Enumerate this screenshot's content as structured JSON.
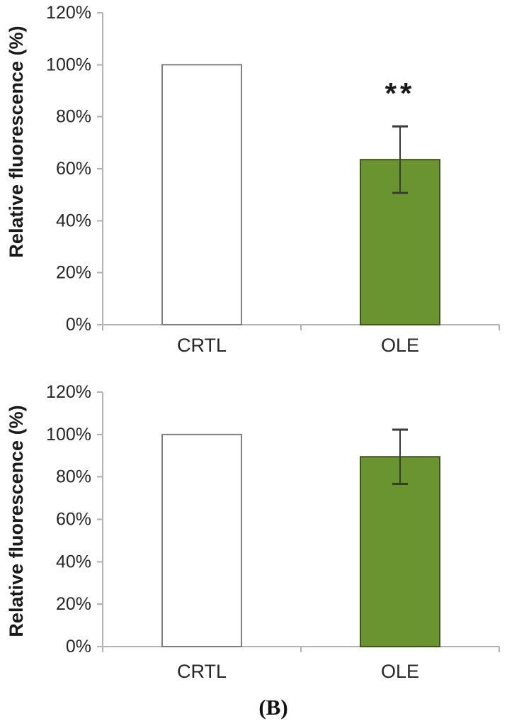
{
  "figure": {
    "caption": "(B)"
  },
  "colors": {
    "background": "#ffffff",
    "axis_line": "#b2b2b2",
    "tick_text": "#262626",
    "error_bar": "#3a3a3a",
    "annotation_text": "#1a1a1a",
    "green_fill": "#699430",
    "green_border": "#44521f",
    "white_fill": "#ffffff",
    "white_border": "#7f7f7f"
  },
  "chart_data": [
    {
      "type": "bar",
      "title": "",
      "xlabel": "",
      "ylabel": "Relative fluorescence (%)",
      "categories": [
        "CRTL",
        "OLE"
      ],
      "values": [
        100,
        63.5
      ],
      "errors": [
        null,
        12.8
      ],
      "annotations": [
        null,
        "**"
      ],
      "ylim": [
        0,
        120
      ],
      "ytick_values": [
        0,
        20,
        40,
        60,
        80,
        100,
        120
      ],
      "ytick_labels": [
        "0%",
        "20%",
        "40%",
        "60%",
        "80%",
        "100%",
        "120%"
      ],
      "grid": false,
      "legend": "none",
      "bar_fills": [
        "#ffffff",
        "#699430"
      ],
      "bar_strokes": [
        "#7f7f7f",
        "#44521f"
      ]
    },
    {
      "type": "bar",
      "title": "",
      "xlabel": "",
      "ylabel": "Relative fluorescence (%)",
      "categories": [
        "CRTL",
        "OLE"
      ],
      "values": [
        100,
        89.5
      ],
      "errors": [
        null,
        12.8
      ],
      "annotations": [
        null,
        null
      ],
      "ylim": [
        0,
        120
      ],
      "ytick_values": [
        0,
        20,
        40,
        60,
        80,
        100,
        120
      ],
      "ytick_labels": [
        "0%",
        "20%",
        "40%",
        "60%",
        "80%",
        "100%",
        "120%"
      ],
      "grid": false,
      "legend": "none",
      "bar_fills": [
        "#ffffff",
        "#699430"
      ],
      "bar_strokes": [
        "#7f7f7f",
        "#44521f"
      ]
    }
  ]
}
